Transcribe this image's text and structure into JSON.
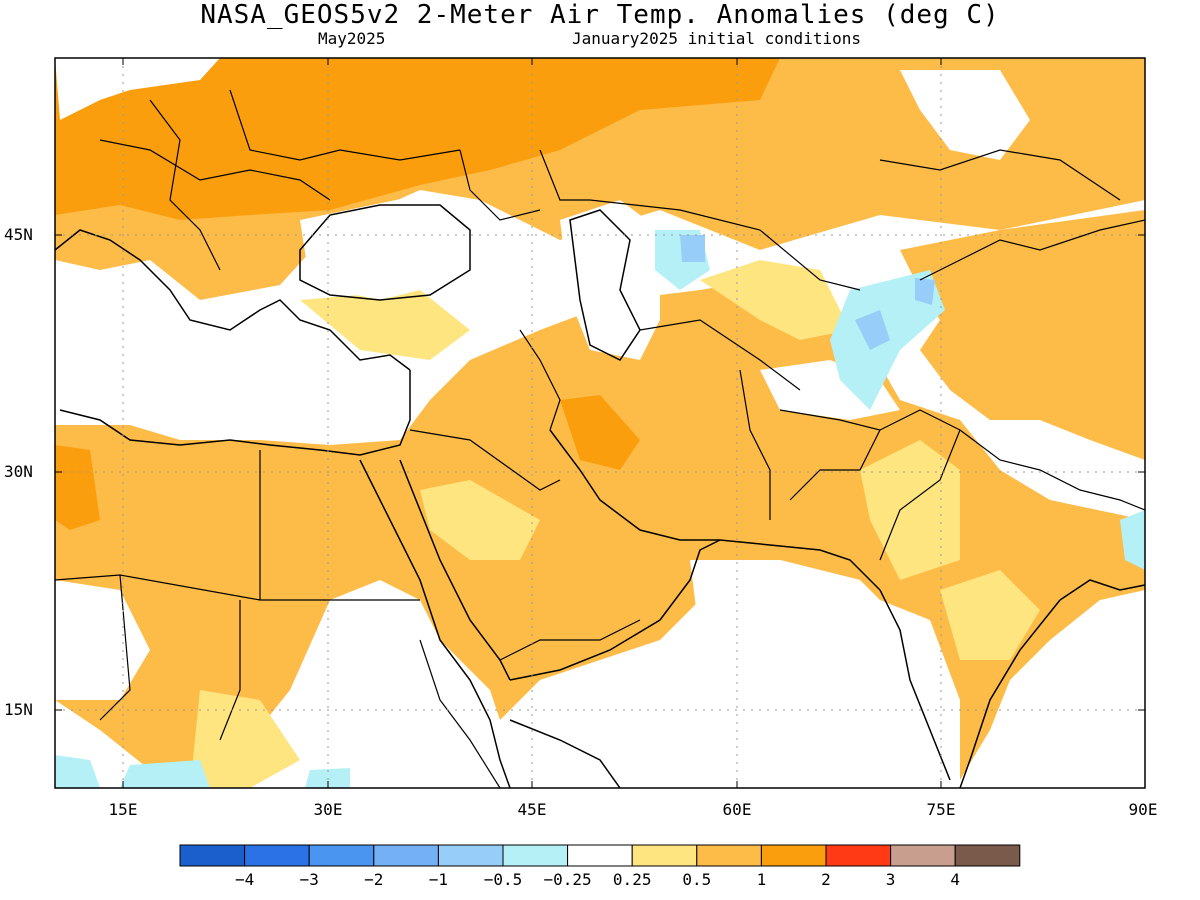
{
  "header": {
    "title": "NASA_GEOS5v2 2-Meter Air Temp. Anomalies (deg C)",
    "valid_month": "May2025",
    "init": "January2025 initial conditions"
  },
  "axes": {
    "lat_labels": [
      "45N",
      "30N",
      "15N"
    ],
    "lon_labels": [
      "15E",
      "30E",
      "45E",
      "60E",
      "75E",
      "90E"
    ]
  },
  "legend": {
    "labels": [
      "−4",
      "−3",
      "−2",
      "−1",
      "−0.5",
      "−0.25",
      "0.25",
      "0.5",
      "1",
      "2",
      "3",
      "4"
    ],
    "colors": [
      "#1a5fcc",
      "#2a72e6",
      "#4a95f0",
      "#74b0f5",
      "#97cdf9",
      "#b4f0f5",
      "#ffffff",
      "#ffe580",
      "#fdbb48",
      "#fb9e0e",
      "#ff3a14",
      "#c89e8e",
      "#7a5a4a"
    ]
  },
  "colors": {
    "orange_strong": "#fb9e0e",
    "orange": "#fdbb48",
    "yellow": "#ffe580",
    "light_blue": "#b4f0f5",
    "blue": "#97cdf9"
  }
}
